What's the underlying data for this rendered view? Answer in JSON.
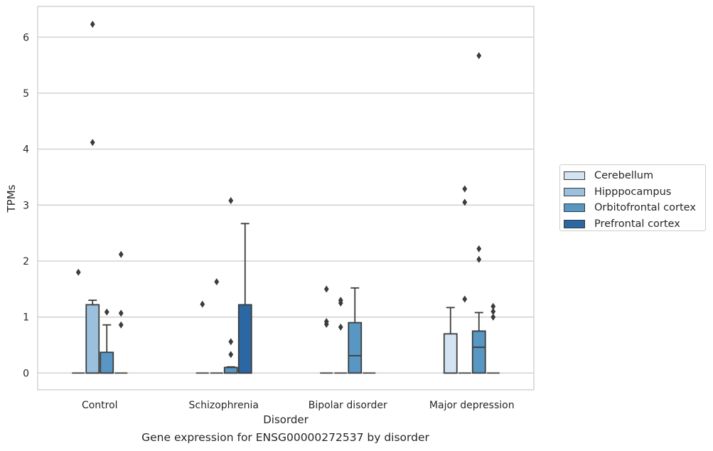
{
  "chart_data": {
    "type": "box",
    "title": "Gene expression for ENSG00000272537 by disorder",
    "xlabel": "Disorder",
    "ylabel": "TPMs",
    "ylim": [
      -0.3,
      6.55
    ],
    "yticks": [
      0,
      1,
      2,
      3,
      4,
      5,
      6
    ],
    "grid": "horizontal",
    "legend_position": "right",
    "categories": [
      "Control",
      "Schizophrenia",
      "Bipolar disorder",
      "Major depression"
    ],
    "series": [
      {
        "name": "Cerebellum",
        "color": "#d3e3f2",
        "boxes": [
          {
            "q1": 0,
            "median": 0,
            "q3": 0,
            "whisker_low": 0,
            "whisker_high": 0,
            "outliers": [
              1.8
            ]
          },
          {
            "q1": 0,
            "median": 0,
            "q3": 0,
            "whisker_low": 0,
            "whisker_high": 0,
            "outliers": [
              1.23
            ]
          },
          {
            "q1": 0,
            "median": 0,
            "q3": 0,
            "whisker_low": 0,
            "whisker_high": 0,
            "outliers": [
              1.5,
              0.92,
              0.87
            ]
          },
          {
            "q1": 0,
            "median": 0,
            "q3": 0.7,
            "whisker_low": 0,
            "whisker_high": 1.17,
            "outliers": []
          }
        ]
      },
      {
        "name": "Hipppocampus",
        "color": "#9ac0dd",
        "boxes": [
          {
            "q1": 0,
            "median": 0,
            "q3": 1.22,
            "whisker_low": 0,
            "whisker_high": 1.3,
            "outliers": [
              4.12,
              6.23
            ]
          },
          {
            "q1": 0,
            "median": 0,
            "q3": 0,
            "whisker_low": 0,
            "whisker_high": 0,
            "outliers": [
              1.63
            ]
          },
          {
            "q1": 0,
            "median": 0,
            "q3": 0,
            "whisker_low": 0,
            "whisker_high": 0,
            "outliers": [
              1.3,
              1.25,
              0.82
            ]
          },
          {
            "q1": 0,
            "median": 0,
            "q3": 0,
            "whisker_low": 0,
            "whisker_high": 0,
            "outliers": [
              3.29,
              3.05,
              1.32
            ]
          }
        ]
      },
      {
        "name": "Orbitofrontal cortex",
        "color": "#5896c3",
        "boxes": [
          {
            "q1": 0,
            "median": 0,
            "q3": 0.37,
            "whisker_low": 0,
            "whisker_high": 0.86,
            "outliers": [
              1.09
            ]
          },
          {
            "q1": 0,
            "median": 0,
            "q3": 0.1,
            "whisker_low": 0,
            "whisker_high": 0.11,
            "outliers": [
              3.08,
              0.56,
              0.33
            ]
          },
          {
            "q1": 0,
            "median": 0.31,
            "q3": 0.9,
            "whisker_low": 0,
            "whisker_high": 1.52,
            "outliers": []
          },
          {
            "q1": 0,
            "median": 0.46,
            "q3": 0.75,
            "whisker_low": 0,
            "whisker_high": 1.08,
            "outliers": [
              5.67,
              2.22,
              2.03
            ]
          }
        ]
      },
      {
        "name": "Prefrontal cortex",
        "color": "#2a67a3",
        "boxes": [
          {
            "q1": 0,
            "median": 0,
            "q3": 0,
            "whisker_low": 0,
            "whisker_high": 0,
            "outliers": [
              2.12,
              1.07,
              0.86
            ]
          },
          {
            "q1": 0,
            "median": 0,
            "q3": 1.22,
            "whisker_low": 0,
            "whisker_high": 2.67,
            "outliers": []
          },
          {
            "q1": 0,
            "median": 0,
            "q3": 0,
            "whisker_low": 0,
            "whisker_high": 0,
            "outliers": []
          },
          {
            "q1": 0,
            "median": 0,
            "q3": 0,
            "whisker_low": 0,
            "whisker_high": 0,
            "outliers": [
              1.19,
              1.1,
              1.0
            ]
          }
        ]
      }
    ]
  }
}
